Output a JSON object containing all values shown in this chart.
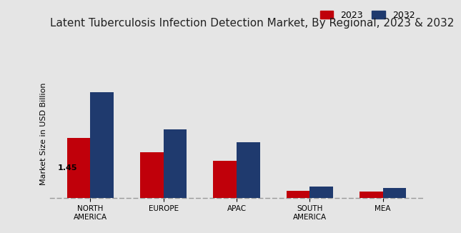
{
  "title": "Latent Tuberculosis Infection Detection Market, By Regional, 2023 & 2032",
  "ylabel": "Market Size in USD Billion",
  "categories": [
    "NORTH\nAMERICA",
    "EUROPE",
    "APAC",
    "SOUTH\nAMERICA",
    "MEA"
  ],
  "values_2023": [
    1.45,
    1.1,
    0.9,
    0.18,
    0.15
  ],
  "values_2032": [
    2.55,
    1.65,
    1.35,
    0.27,
    0.24
  ],
  "color_2023": "#c0000a",
  "color_2032": "#1f3a6e",
  "annotation_text": "1.45",
  "legend_labels": [
    "2023",
    "2032"
  ],
  "bar_width": 0.32,
  "background_color": "#e5e5e5",
  "title_fontsize": 11,
  "axis_label_fontsize": 8,
  "tick_fontsize": 7.5,
  "legend_fontsize": 9,
  "ylim": [
    0,
    3.1
  ],
  "bottom_bar_color": "#c0000a"
}
